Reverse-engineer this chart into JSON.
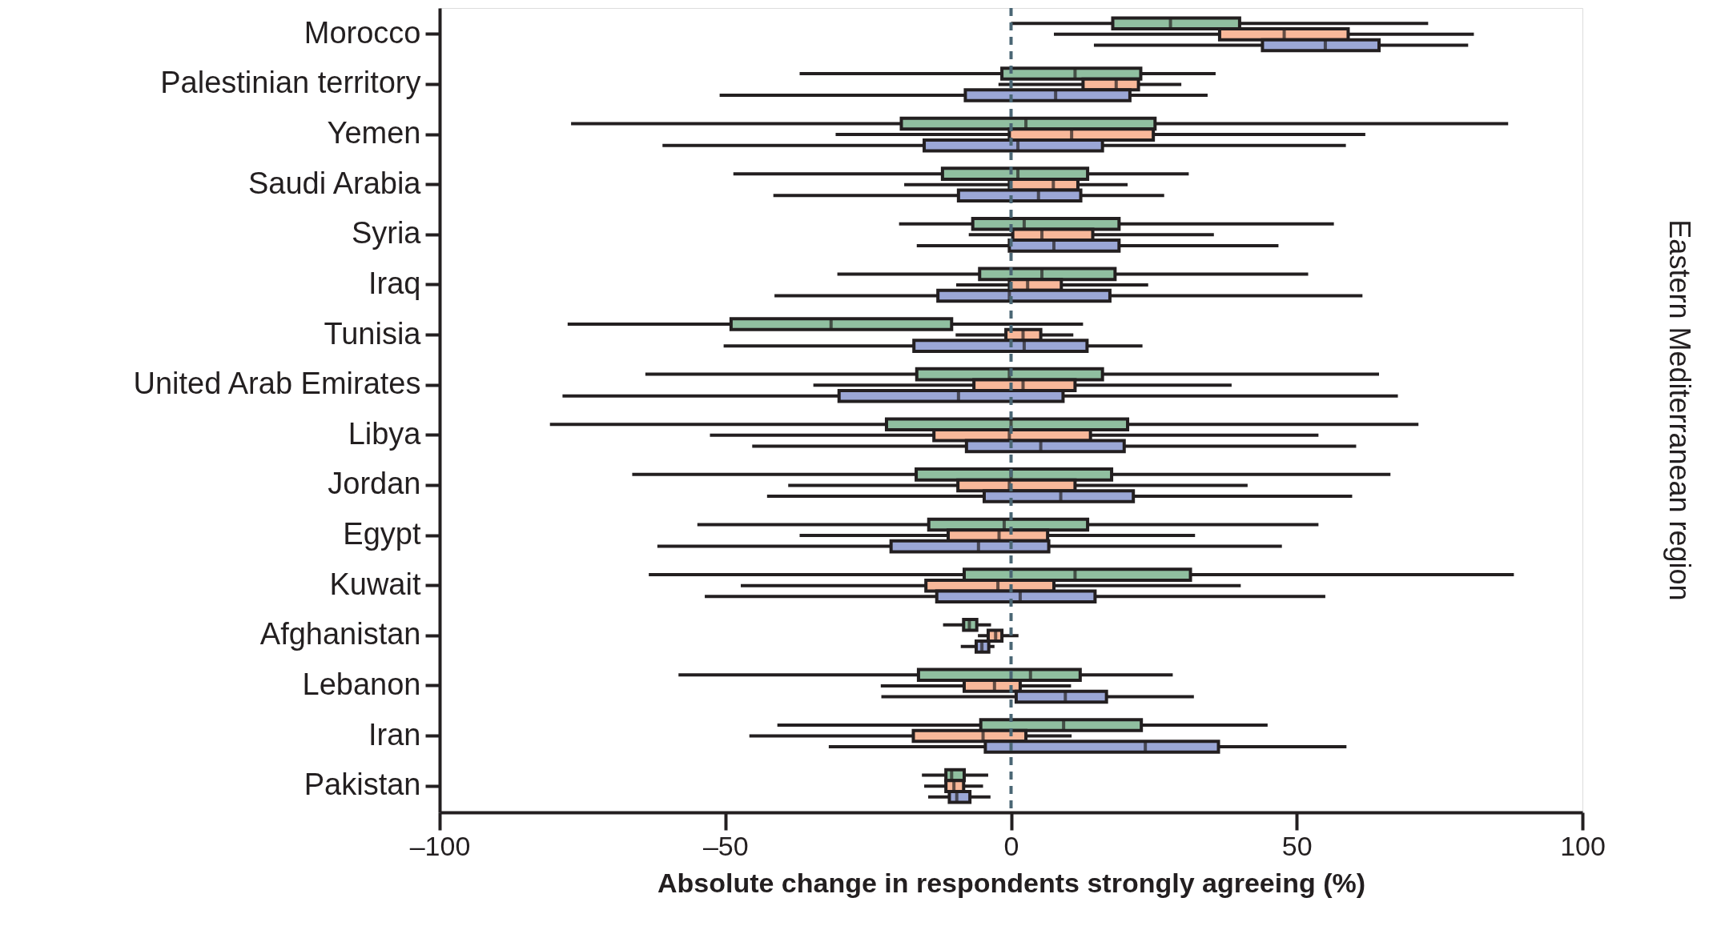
{
  "chart_data": {
    "type": "box",
    "orientation": "horizontal",
    "categories": [
      "Morocco",
      "Palestinian territory",
      "Yemen",
      "Saudi Arabia",
      "Syria",
      "Iraq",
      "Tunisia",
      "United Arab Emirates",
      "Libya",
      "Jordan",
      "Egypt",
      "Kuwait",
      "Afghanistan",
      "Lebanon",
      "Iran",
      "Pakistan"
    ],
    "xlabel": "Absolute change in respondents strongly agreeing (%)",
    "xlim": [
      -100,
      100
    ],
    "xticks": [
      {
        "value": -100,
        "label": "–100"
      },
      {
        "value": -50,
        "label": "–50"
      },
      0,
      50,
      100
    ],
    "grid": false,
    "ref_lines": [
      {
        "axis": "x",
        "value": 0,
        "label": null,
        "color": "#4a6674",
        "line_style": "dashed"
      }
    ],
    "annotations": [
      "Eastern Mediterranean region"
    ],
    "series": [
      {
        "color": "#90bfa0",
        "boxes": [
          {
            "low": 0,
            "q1": 17.8,
            "median": 27.9,
            "q3": 40,
            "high": 73
          },
          {
            "low": -37,
            "q1": -1.6,
            "median": 11.2,
            "q3": 22.7,
            "high": 35.8
          },
          {
            "low": -77,
            "q1": -19.2,
            "median": 2.6,
            "q3": 25.2,
            "high": 87
          },
          {
            "low": -48.6,
            "q1": -12,
            "median": 1.2,
            "q3": 13.4,
            "high": 31.1
          },
          {
            "low": -19.6,
            "q1": -6.7,
            "median": 2.3,
            "q3": 18.9,
            "high": 56.5
          },
          {
            "low": -30.4,
            "q1": -5.5,
            "median": 5.4,
            "q3": 18.2,
            "high": 52
          },
          {
            "low": -77.6,
            "q1": -49,
            "median": -31.5,
            "q3": -10.4,
            "high": 12.6
          },
          {
            "low": -64,
            "q1": -16.5,
            "median": -0.3,
            "q3": 16,
            "high": 64.4
          },
          {
            "low": -80.7,
            "q1": -21.8,
            "median": 0,
            "q3": 20.4,
            "high": 71.3
          },
          {
            "low": -66.3,
            "q1": -16.6,
            "median": 0,
            "q3": 17.6,
            "high": 66.4
          },
          {
            "low": -54.9,
            "q1": -14.4,
            "median": -1.2,
            "q3": 13.4,
            "high": 53.8
          },
          {
            "low": -63.4,
            "q1": -8.2,
            "median": 11.2,
            "q3": 31.4,
            "high": 88
          },
          {
            "low": -11.9,
            "q1": -8.3,
            "median": -7.3,
            "q3": -6,
            "high": -3.5
          },
          {
            "low": -58.2,
            "q1": -16.2,
            "median": 3.4,
            "q3": 12.1,
            "high": 28.3
          },
          {
            "low": -40.9,
            "q1": -5.3,
            "median": 9.2,
            "q3": 22.8,
            "high": 44.9
          },
          {
            "low": -15.6,
            "q1": -11.4,
            "median": -10.4,
            "q3": -8.2,
            "high": -4
          }
        ]
      },
      {
        "color": "#f8b89a",
        "boxes": [
          {
            "low": 7.5,
            "q1": 36.5,
            "median": 47.8,
            "q3": 59,
            "high": 81
          },
          {
            "low": -2.2,
            "q1": 12.6,
            "median": 18.4,
            "q3": 22.3,
            "high": 29.8
          },
          {
            "low": -30.7,
            "q1": -0.3,
            "median": 10.6,
            "q3": 24.9,
            "high": 62
          },
          {
            "low": -18.7,
            "q1": -0.3,
            "median": 7.4,
            "q3": 11.7,
            "high": 20.4
          },
          {
            "low": -7.4,
            "q1": 0.3,
            "median": 5.4,
            "q3": 14.3,
            "high": 35.5
          },
          {
            "low": -9.6,
            "q1": -0.3,
            "median": 2.9,
            "q3": 8.8,
            "high": 24
          },
          {
            "low": -9.7,
            "q1": -0.9,
            "median": 2.1,
            "q3": 5.2,
            "high": 10.9
          },
          {
            "low": -34.6,
            "q1": -6.5,
            "median": 2.1,
            "q3": 11.2,
            "high": 38.6
          },
          {
            "low": -52.7,
            "q1": -13.5,
            "median": -0.3,
            "q3": 13.9,
            "high": 53.8
          },
          {
            "low": -39,
            "q1": -9.3,
            "median": -0.3,
            "q3": 11.2,
            "high": 41.4
          },
          {
            "low": -37,
            "q1": -11,
            "median": -2.1,
            "q3": 6.4,
            "high": 32.2
          },
          {
            "low": -47.3,
            "q1": -14.9,
            "median": -2.3,
            "q3": 7.5,
            "high": 40.2
          },
          {
            "low": -5.8,
            "q1": -4,
            "median": -2.7,
            "q3": -1.6,
            "high": 1.3
          },
          {
            "low": -22.8,
            "q1": -8.2,
            "median": -2.9,
            "q3": 1.6,
            "high": 10.5
          },
          {
            "low": -45.8,
            "q1": -17.1,
            "median": -4.9,
            "q3": 2.6,
            "high": 10.6
          },
          {
            "low": -15.2,
            "q1": -11.4,
            "median": -10,
            "q3": -8.3,
            "high": -4.9
          }
        ]
      },
      {
        "color": "#9ba7d6",
        "boxes": [
          {
            "low": 14.5,
            "q1": 44,
            "median": 55,
            "q3": 64.4,
            "high": 80
          },
          {
            "low": -51,
            "q1": -8,
            "median": 7.8,
            "q3": 20.8,
            "high": 34.4
          },
          {
            "low": -61,
            "q1": -15.2,
            "median": 1.2,
            "q3": 16,
            "high": 58.6
          },
          {
            "low": -41.6,
            "q1": -9.2,
            "median": 4.8,
            "q3": 12.2,
            "high": 26.8
          },
          {
            "low": -16.5,
            "q1": -0.3,
            "median": 7.5,
            "q3": 18.9,
            "high": 46.8
          },
          {
            "low": -41.4,
            "q1": -12.8,
            "median": -0.3,
            "q3": 17.3,
            "high": 61.5
          },
          {
            "low": -50.3,
            "q1": -17,
            "median": 2.3,
            "q3": 13.3,
            "high": 23
          },
          {
            "low": -78.5,
            "q1": -30.1,
            "median": -9.2,
            "q3": 9.1,
            "high": 67.7
          },
          {
            "low": -45.3,
            "q1": -7.8,
            "median": 5.2,
            "q3": 19.8,
            "high": 60.4
          },
          {
            "low": -42.7,
            "q1": -4.7,
            "median": 8.7,
            "q3": 21.4,
            "high": 59.7
          },
          {
            "low": -61.9,
            "q1": -21,
            "median": -5.7,
            "q3": 6.6,
            "high": 47.4
          },
          {
            "low": -53.6,
            "q1": -13,
            "median": 1.6,
            "q3": 14.7,
            "high": 55
          },
          {
            "low": -8.8,
            "q1": -6.1,
            "median": -5.1,
            "q3": -3.9,
            "high": -2.9
          },
          {
            "low": -22.7,
            "q1": 0.9,
            "median": 9.5,
            "q3": 16.7,
            "high": 32
          },
          {
            "low": -31.9,
            "q1": -4.5,
            "median": 23.5,
            "q3": 36.3,
            "high": 58.7
          },
          {
            "low": -14.5,
            "q1": -10.8,
            "median": -9.5,
            "q3": -7.2,
            "high": -3.6
          }
        ]
      }
    ]
  }
}
